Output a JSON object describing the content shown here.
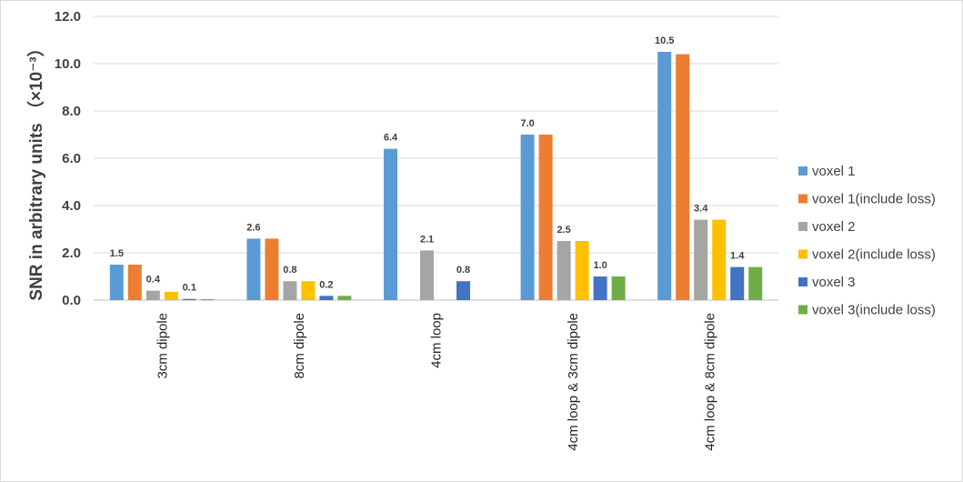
{
  "chart_data": {
    "type": "bar",
    "title": "",
    "xlabel": "",
    "ylabel": "SNR in arbitrary units （×10⁻³）",
    "ylim": [
      0,
      12
    ],
    "yticks": [
      "0.0",
      "2.0",
      "4.0",
      "6.0",
      "8.0",
      "10.0",
      "12.0"
    ],
    "grid": true,
    "legend_position": "right",
    "categories": [
      "3cm dipole",
      "8cm dipole",
      "4cm loop",
      "4cm loop & 3cm dipole",
      "4cm loop & 8cm dipole"
    ],
    "series": [
      {
        "name": "voxel 1",
        "color": "#5B9BD5",
        "values": [
          1.5,
          2.6,
          6.4,
          7.0,
          10.5
        ],
        "labels": [
          "1.5",
          "2.6",
          "6.4",
          "7.0",
          "10.5"
        ]
      },
      {
        "name": "voxel 1(include loss)",
        "color": "#ED7D31",
        "values": [
          1.5,
          2.6,
          null,
          7.0,
          10.4
        ],
        "labels": [
          "",
          "",
          "",
          "",
          ""
        ]
      },
      {
        "name": "voxel 2",
        "color": "#A5A5A5",
        "values": [
          0.4,
          0.8,
          2.1,
          2.5,
          3.4
        ],
        "labels": [
          "0.4",
          "0.8",
          "2.1",
          "2.5",
          "3.4"
        ]
      },
      {
        "name": "voxel 2(include loss)",
        "color": "#FFC000",
        "values": [
          0.35,
          0.8,
          null,
          2.5,
          3.4
        ],
        "labels": [
          "",
          "",
          "",
          "",
          ""
        ]
      },
      {
        "name": "voxel 3",
        "color": "#4472C4",
        "values": [
          0.05,
          0.18,
          0.8,
          1.0,
          1.4
        ],
        "labels": [
          "0.1",
          "0.2",
          "0.8",
          "1.0",
          "1.4"
        ]
      },
      {
        "name": "voxel 3(include loss)",
        "color": "#70AD47",
        "values": [
          0.04,
          0.18,
          null,
          1.0,
          1.4
        ],
        "labels": [
          "",
          "",
          "",
          "",
          ""
        ]
      }
    ]
  }
}
